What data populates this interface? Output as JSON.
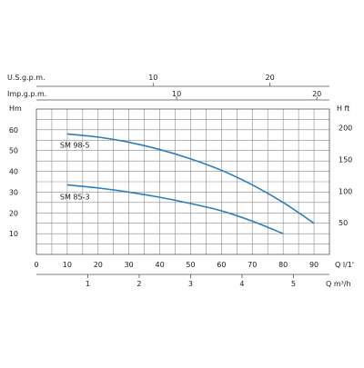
{
  "chart_data": {
    "type": "line",
    "axes": {
      "q_lpm": {
        "label": "Q  l/1'",
        "range": [
          0,
          95
        ],
        "ticks": [
          0,
          10,
          20,
          30,
          40,
          50,
          60,
          70,
          80,
          90
        ]
      },
      "q_m3h": {
        "label": "Q  m³/h",
        "ticks": [
          1,
          2,
          3,
          4,
          5
        ]
      },
      "usgpm": {
        "label": "U.S.g.p.m.",
        "ticks": [
          10,
          20
        ]
      },
      "impgpm": {
        "label": "Imp.g.p.m.",
        "ticks": [
          10,
          20
        ]
      },
      "head_m": {
        "label": "Hm",
        "range": [
          0,
          70
        ],
        "ticks": [
          10,
          20,
          30,
          40,
          50,
          60
        ]
      },
      "head_ft": {
        "label": "H ft",
        "ticks": [
          50,
          100,
          150,
          200
        ]
      }
    },
    "grid": true,
    "series": [
      {
        "name": "SM 98-5",
        "color": "#2a7fc0",
        "x": [
          10,
          20,
          30,
          40,
          50,
          60,
          70,
          80,
          90
        ],
        "y": [
          58,
          56.5,
          54,
          50.5,
          46,
          40.5,
          33.5,
          25,
          15
        ]
      },
      {
        "name": "SM 85-3",
        "color": "#2a7fc0",
        "x": [
          10,
          20,
          30,
          40,
          50,
          60,
          70,
          80
        ],
        "y": [
          33.5,
          32,
          30,
          27.5,
          24.5,
          21,
          16,
          10
        ]
      }
    ]
  }
}
